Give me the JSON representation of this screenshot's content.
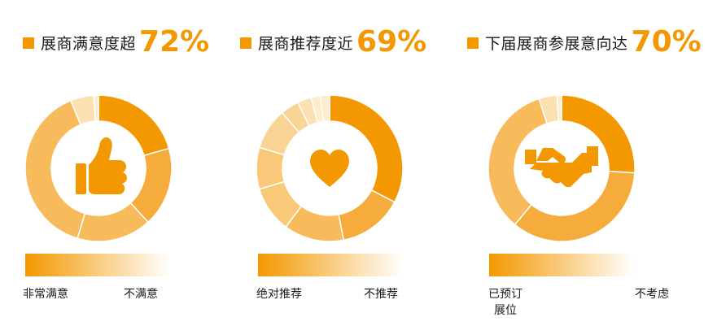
{
  "colors": {
    "accent": "#f39800",
    "shades": [
      "#f39800",
      "#f6ac3c",
      "#f8bb5c",
      "#f9c878",
      "#fad494",
      "#fbe0b2",
      "#fdeccd"
    ]
  },
  "chart_data": [
    {
      "type": "pie",
      "title": "展商满意度超",
      "title_value": "72%",
      "icon": "thumbs-up-icon",
      "slice_shades": [
        0,
        1,
        2,
        2,
        5,
        6
      ],
      "values": [
        20,
        17,
        16,
        38,
        5,
        1
      ],
      "scale_labels": [
        "非常满意",
        "不满意"
      ]
    },
    {
      "type": "pie",
      "title": "展商推荐度近",
      "title_value": "69%",
      "icon": "heart-icon",
      "slice_shades": [
        0,
        1,
        2,
        3,
        3,
        4,
        4,
        5,
        6,
        6
      ],
      "values": [
        32,
        14,
        13,
        10,
        9,
        9,
        4,
        3,
        2,
        2
      ],
      "scale_labels": [
        "绝对推荐",
        "不推荐"
      ]
    },
    {
      "type": "pie",
      "title": "下届展商参展意向达",
      "title_value": "70%",
      "icon": "handshake-icon",
      "slice_shades": [
        0,
        1,
        2,
        5,
        6
      ],
      "values": [
        26,
        35,
        34,
        4,
        1
      ],
      "scale_labels": [
        "已预订\n展位",
        "不考虑"
      ]
    }
  ]
}
